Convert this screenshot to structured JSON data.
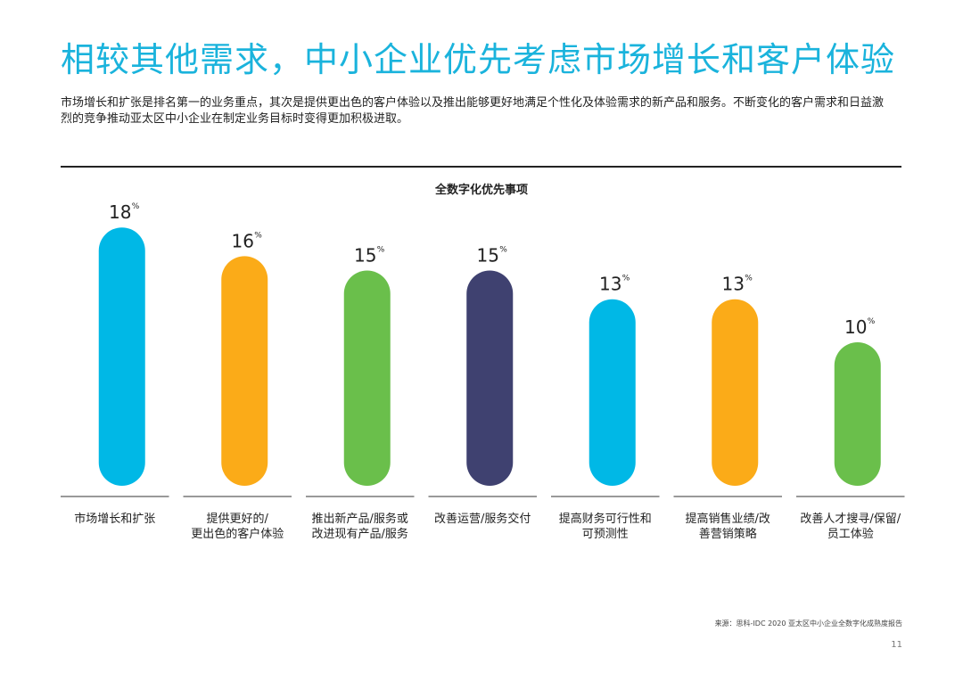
{
  "header": {
    "title": "相较其他需求，中小企业优先考虑市场增长和客户体验",
    "subtitle": "市场增长和扩张是排名第一的业务重点，其次是提供更出色的客户体验以及推出能够更好地满足个性化及体验需求的新产品和服务。不断变化的客户需求和日益激烈的竞争推动亚太区中小企业在制定业务目标时变得更加积极进取。"
  },
  "chart_data": {
    "type": "bar",
    "title": "全数字化优先事项",
    "unit": "%",
    "categories": [
      [
        "市场增长和扩张"
      ],
      [
        "提供更好的/",
        "更出色的客户体验"
      ],
      [
        "推出新产品/服务或",
        "改进现有产品/服务"
      ],
      [
        "改善运营/服务交付"
      ],
      [
        "提高财务可行性和",
        "可预测性"
      ],
      [
        "提高销售业绩/改",
        "善营销策略"
      ],
      [
        "改善人才搜寻/保留/",
        "员工体验"
      ]
    ],
    "values": [
      18,
      16,
      15,
      15,
      13,
      13,
      10
    ],
    "colors": [
      "#00b8e6",
      "#fbab18",
      "#6abf4b",
      "#3f4170",
      "#00b8e6",
      "#fbab18",
      "#6abf4b"
    ],
    "grid": false,
    "legend": "none"
  },
  "footer": {
    "source": "来源：思科-IDC 2020 亚太区中小企业全数字化成熟度报告",
    "page_number": "11"
  }
}
